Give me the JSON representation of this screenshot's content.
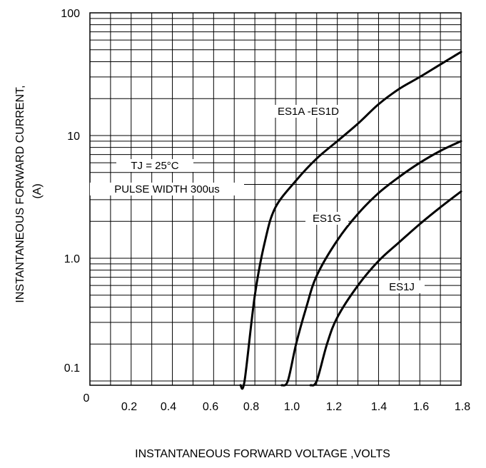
{
  "chart_data": {
    "type": "line",
    "title": "",
    "xlabel": "INSTANTANEOUS FORWARD VOLTAGE ,VOLTS",
    "ylabel": "INSTANTANEOUS FORWARD CURRENT,",
    "ylabel_unit": "(A)",
    "xlim": [
      0,
      1.8
    ],
    "ylim": [
      0.05,
      100
    ],
    "yscale": "log",
    "grid": true,
    "x_ticks": [
      "0",
      "0.2",
      "0.4",
      "0.6",
      "0.8",
      "1.0",
      "1.2",
      "1.4",
      "1.6",
      "1.8"
    ],
    "y_ticks": [
      "0.1",
      "1.0",
      "10",
      "100"
    ],
    "annotations": [
      "TJ = 25°C",
      "PULSE WIDTH 300us"
    ],
    "series": [
      {
        "name": "ES1A -ES1D",
        "points": [
          [
            0.73,
            0.05
          ],
          [
            0.75,
            0.1
          ],
          [
            0.8,
            0.5
          ],
          [
            0.85,
            1.4
          ],
          [
            0.9,
            2.6
          ],
          [
            1.0,
            4.3
          ],
          [
            1.1,
            6.5
          ],
          [
            1.2,
            9.0
          ],
          [
            1.3,
            12.5
          ],
          [
            1.4,
            18.0
          ],
          [
            1.5,
            24.0
          ],
          [
            1.6,
            30.0
          ],
          [
            1.7,
            38.0
          ],
          [
            1.8,
            48.0
          ]
        ]
      },
      {
        "name": "ES1G",
        "points": [
          [
            0.93,
            0.05
          ],
          [
            0.96,
            0.1
          ],
          [
            1.0,
            0.2
          ],
          [
            1.05,
            0.4
          ],
          [
            1.1,
            0.72
          ],
          [
            1.2,
            1.4
          ],
          [
            1.3,
            2.3
          ],
          [
            1.4,
            3.4
          ],
          [
            1.5,
            4.6
          ],
          [
            1.6,
            6.0
          ],
          [
            1.7,
            7.5
          ],
          [
            1.8,
            9.0
          ]
        ]
      },
      {
        "name": "ES1J",
        "points": [
          [
            1.07,
            0.05
          ],
          [
            1.1,
            0.1
          ],
          [
            1.15,
            0.2
          ],
          [
            1.2,
            0.33
          ],
          [
            1.3,
            0.6
          ],
          [
            1.4,
            0.95
          ],
          [
            1.5,
            1.35
          ],
          [
            1.6,
            1.9
          ],
          [
            1.7,
            2.6
          ],
          [
            1.8,
            3.5
          ]
        ]
      }
    ]
  }
}
